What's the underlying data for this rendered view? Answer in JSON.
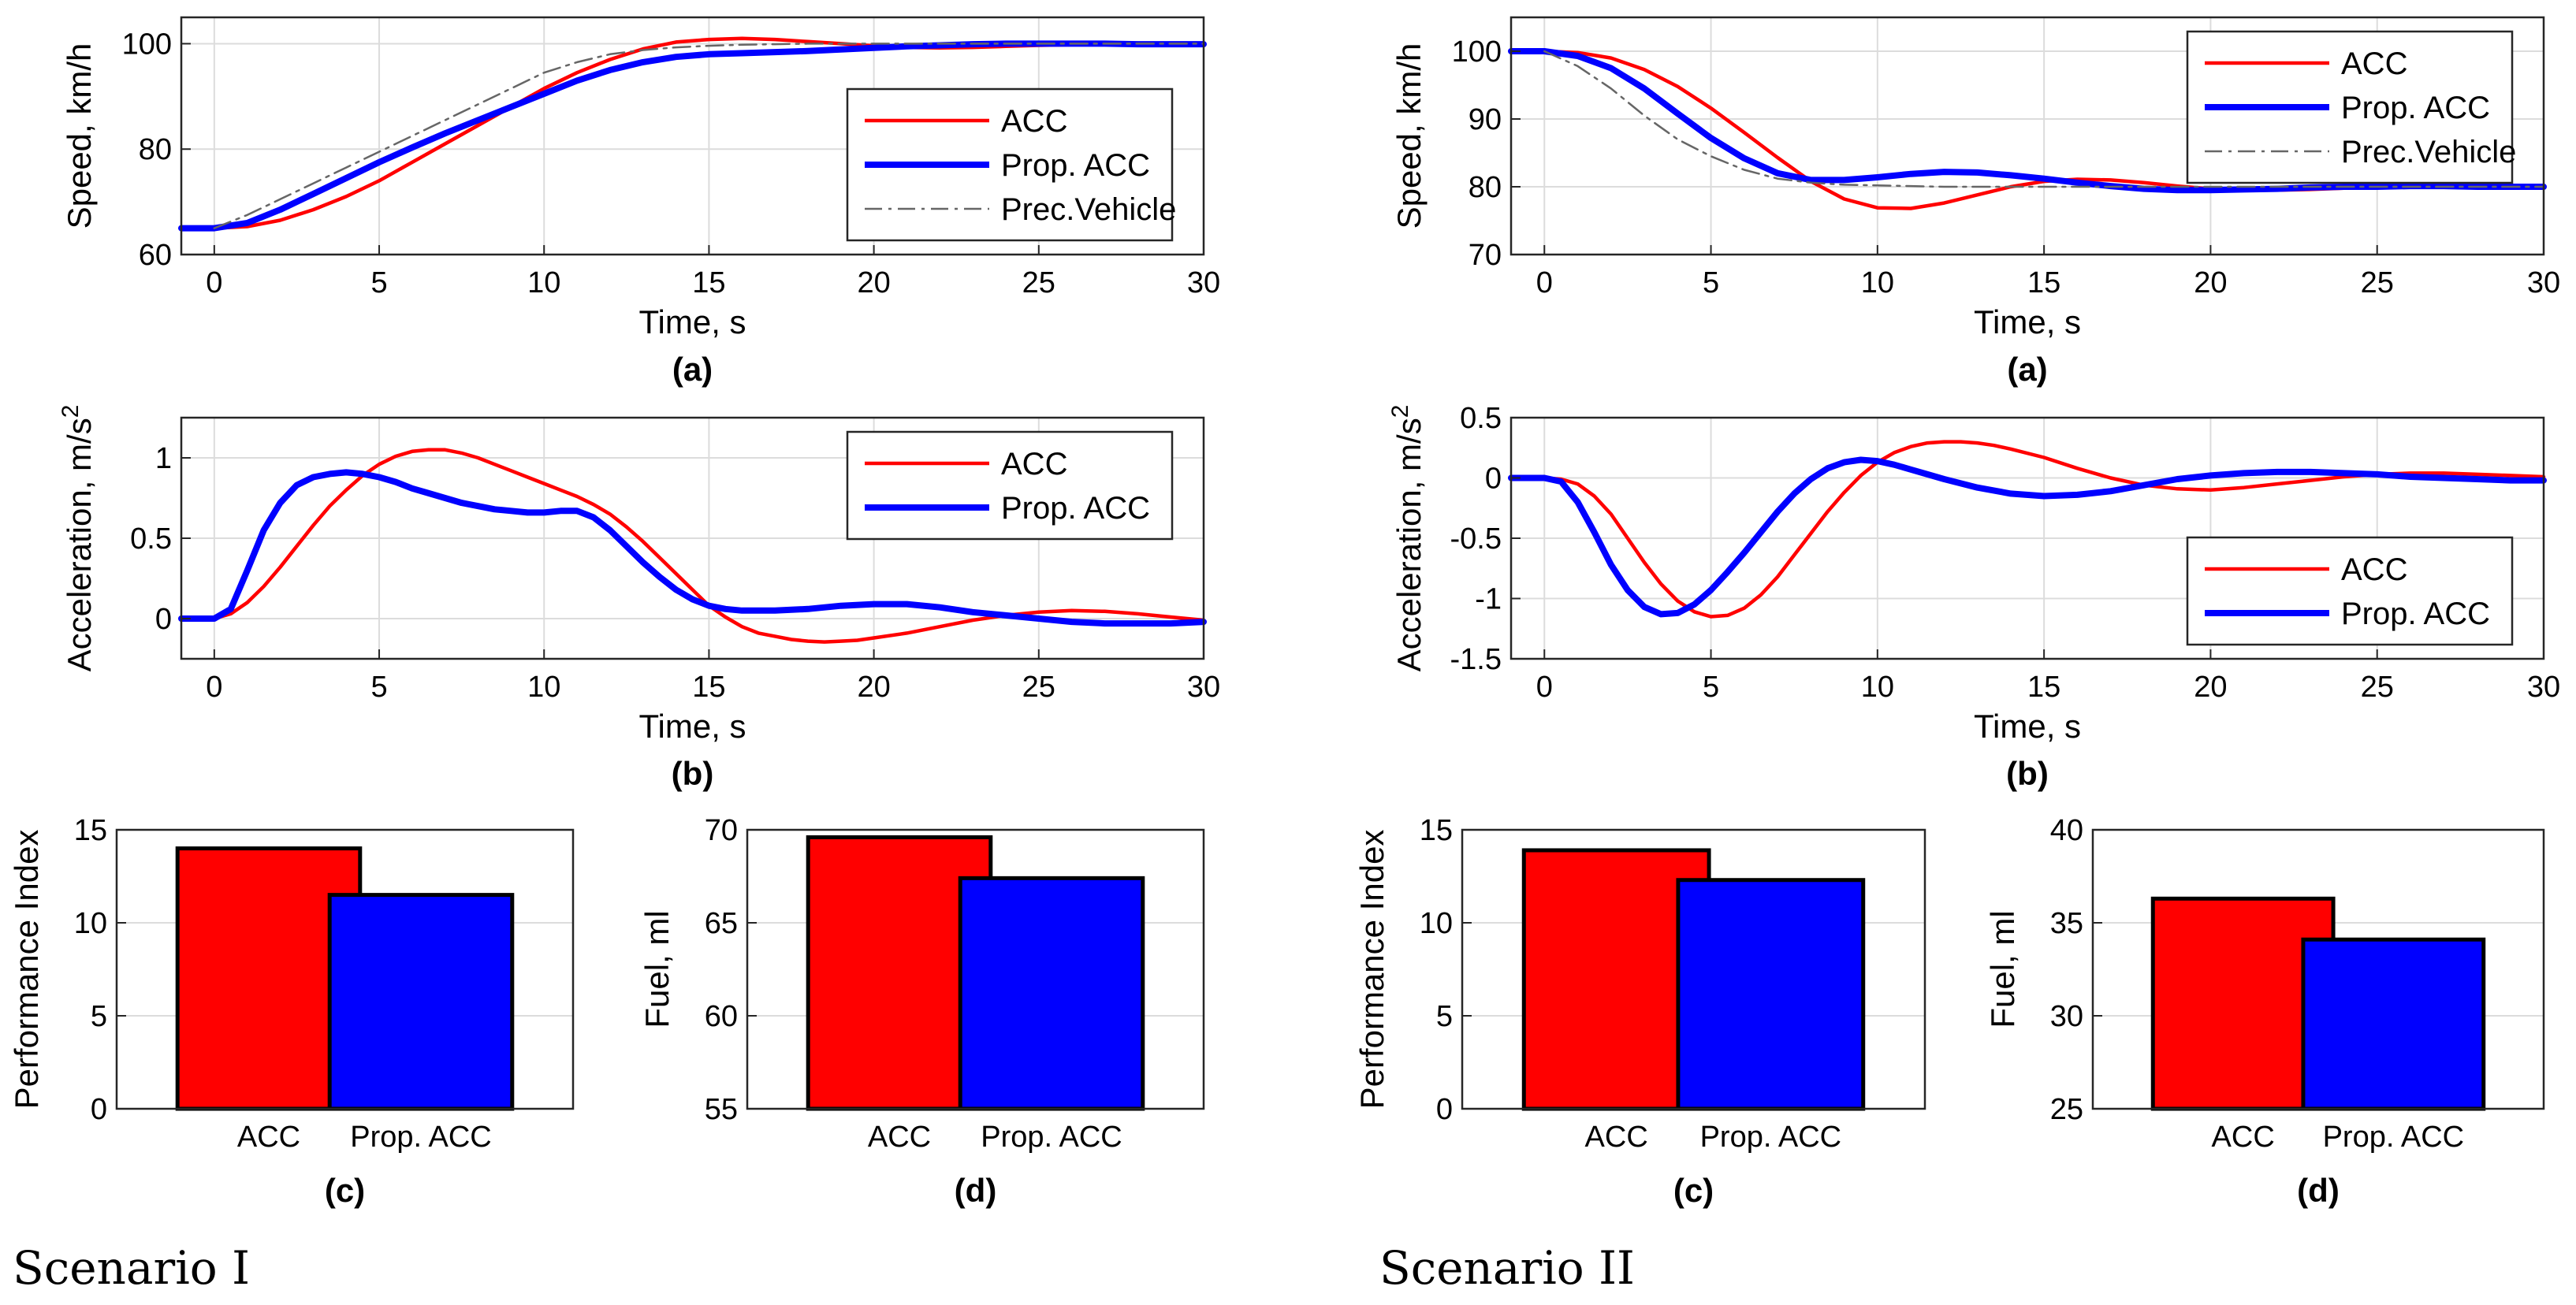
{
  "colors": {
    "acc": "#ff0000",
    "prop": "#0000ff",
    "prec": "#666666",
    "grid": "#dcdcdc",
    "axis": "#262626"
  },
  "scenarios": [
    {
      "title": "Scenario I"
    },
    {
      "title": "Scenario II"
    }
  ],
  "chart_data": [
    {
      "type": "line",
      "scenario": "Scenario I",
      "caption": "(a)",
      "xlabel": "Time, s",
      "ylabel": "Speed, km/h",
      "ylabel_sup": "",
      "xlim": [
        -1,
        30
      ],
      "ylim": [
        60,
        105
      ],
      "xticks": [
        0,
        5,
        10,
        15,
        20,
        25,
        30
      ],
      "xtick_labels": [
        "0",
        "5",
        "10",
        "15",
        "20",
        "25",
        "30"
      ],
      "yticks": [
        60,
        80,
        100
      ],
      "ytick_labels": [
        "60",
        "80",
        "100"
      ],
      "legend": [
        "ACC",
        "Prop. ACC",
        "Prec.Vehicle"
      ],
      "legend_position": "lower-right",
      "series": [
        {
          "name": "ACC",
          "style": "acc",
          "x": [
            -1,
            0,
            1,
            2,
            3,
            4,
            5,
            6,
            7,
            8,
            9,
            10,
            11,
            12,
            13,
            14,
            15,
            16,
            17,
            18,
            19,
            20,
            21,
            22,
            23,
            24,
            25,
            26,
            27,
            28,
            29,
            30
          ],
          "y": [
            65,
            65,
            65.3,
            66.5,
            68.5,
            71,
            74,
            77.5,
            81,
            84.5,
            88,
            91.5,
            94.5,
            97,
            99,
            100.3,
            100.8,
            101,
            100.8,
            100.4,
            100,
            99.6,
            99.3,
            99.2,
            99.3,
            99.5,
            99.7,
            99.8,
            99.9,
            99.9,
            100,
            100
          ]
        },
        {
          "name": "Prop. ACC",
          "style": "prop",
          "x": [
            -1,
            0,
            1,
            2,
            3,
            4,
            5,
            6,
            7,
            8,
            9,
            10,
            11,
            12,
            13,
            14,
            15,
            16,
            17,
            18,
            19,
            20,
            21,
            22,
            23,
            24,
            25,
            26,
            27,
            28,
            29,
            30
          ],
          "y": [
            65,
            65,
            66,
            68.5,
            71.5,
            74.5,
            77.5,
            80.3,
            83,
            85.5,
            88,
            90.5,
            93,
            95,
            96.5,
            97.5,
            98,
            98.2,
            98.4,
            98.6,
            98.9,
            99.2,
            99.5,
            99.7,
            99.9,
            100,
            100,
            100,
            100,
            99.9,
            99.9,
            99.9
          ]
        },
        {
          "name": "Prec.Vehicle",
          "style": "prec",
          "x": [
            0,
            1,
            2,
            3,
            4,
            5,
            6,
            7,
            8,
            9,
            10,
            11,
            12,
            13,
            14,
            15,
            16,
            17,
            18,
            19,
            20,
            21,
            22,
            23,
            24,
            25,
            26,
            27,
            28,
            29,
            30
          ],
          "y": [
            65,
            67.5,
            70.5,
            73.5,
            76.5,
            79.5,
            82.5,
            85.5,
            88.5,
            91.5,
            94.5,
            96.5,
            98,
            98.8,
            99.3,
            99.6,
            99.8,
            99.9,
            100,
            100,
            100,
            100,
            100,
            100,
            100,
            100,
            100,
            100,
            100,
            100,
            100
          ]
        }
      ]
    },
    {
      "type": "line",
      "scenario": "Scenario I",
      "caption": "(b)",
      "xlabel": "Time, s",
      "ylabel": "Acceleration, m/s",
      "ylabel_sup": "2",
      "xlim": [
        -1,
        30
      ],
      "ylim": [
        -0.25,
        1.25
      ],
      "xticks": [
        0,
        5,
        10,
        15,
        20,
        25,
        30
      ],
      "xtick_labels": [
        "0",
        "5",
        "10",
        "15",
        "20",
        "25",
        "30"
      ],
      "yticks": [
        0,
        0.5,
        1
      ],
      "ytick_labels": [
        "0",
        "0.5",
        "1"
      ],
      "legend": [
        "ACC",
        "Prop. ACC"
      ],
      "legend_position": "top-right",
      "series": [
        {
          "name": "ACC",
          "style": "acc",
          "x": [
            -1,
            0,
            0.5,
            1,
            1.5,
            2,
            2.5,
            3,
            3.5,
            4,
            4.5,
            5,
            5.5,
            6,
            6.5,
            7,
            7.5,
            8,
            8.5,
            9,
            9.5,
            10,
            10.5,
            11,
            11.5,
            12,
            12.5,
            13,
            13.5,
            14,
            14.5,
            15,
            15.5,
            16,
            16.5,
            17,
            17.5,
            18,
            18.5,
            19,
            19.5,
            20,
            21,
            22,
            23,
            24,
            25,
            26,
            27,
            28,
            29,
            30
          ],
          "y": [
            0,
            0,
            0.03,
            0.1,
            0.2,
            0.32,
            0.45,
            0.58,
            0.7,
            0.8,
            0.89,
            0.96,
            1.01,
            1.04,
            1.05,
            1.05,
            1.03,
            1.0,
            0.96,
            0.92,
            0.88,
            0.84,
            0.8,
            0.76,
            0.71,
            0.65,
            0.57,
            0.48,
            0.38,
            0.28,
            0.18,
            0.08,
            0.01,
            -0.05,
            -0.09,
            -0.11,
            -0.13,
            -0.14,
            -0.145,
            -0.14,
            -0.135,
            -0.12,
            -0.09,
            -0.05,
            -0.01,
            0.02,
            0.04,
            0.05,
            0.045,
            0.03,
            0.01,
            -0.01
          ]
        },
        {
          "name": "Prop. ACC",
          "style": "prop",
          "x": [
            -1,
            0,
            0.5,
            1,
            1.5,
            2,
            2.5,
            3,
            3.5,
            4,
            4.5,
            5,
            5.5,
            6,
            6.5,
            7,
            7.5,
            8,
            8.5,
            9,
            9.5,
            10,
            10.5,
            11,
            11.5,
            12,
            12.5,
            13,
            13.5,
            14,
            14.5,
            15,
            15.5,
            16,
            16.5,
            17,
            17.5,
            18,
            19,
            20,
            21,
            22,
            23,
            24,
            25,
            26,
            27,
            28,
            29,
            30
          ],
          "y": [
            0,
            0,
            0.06,
            0.3,
            0.55,
            0.72,
            0.83,
            0.88,
            0.9,
            0.91,
            0.9,
            0.88,
            0.85,
            0.81,
            0.78,
            0.75,
            0.72,
            0.7,
            0.68,
            0.67,
            0.66,
            0.66,
            0.67,
            0.67,
            0.63,
            0.55,
            0.45,
            0.35,
            0.26,
            0.18,
            0.12,
            0.08,
            0.06,
            0.05,
            0.05,
            0.05,
            0.055,
            0.06,
            0.08,
            0.09,
            0.09,
            0.07,
            0.04,
            0.02,
            0,
            -0.02,
            -0.03,
            -0.03,
            -0.03,
            -0.02
          ]
        }
      ]
    },
    {
      "type": "bar",
      "scenario": "Scenario I",
      "caption": "(c)",
      "categories": [
        "ACC",
        "Prop. ACC"
      ],
      "values": [
        14,
        11.5
      ],
      "xlabel": "",
      "ylabel": "Performance Index",
      "ylabel_sup": "",
      "ylim": [
        0,
        15
      ],
      "yticks": [
        0,
        5,
        10,
        15
      ],
      "ytick_labels": [
        "0",
        "5",
        "10",
        "15"
      ]
    },
    {
      "type": "bar",
      "scenario": "Scenario I",
      "caption": "(d)",
      "categories": [
        "ACC",
        "Prop. ACC"
      ],
      "values": [
        69.6,
        67.4
      ],
      "xlabel": "",
      "ylabel": "Fuel, ml",
      "ylabel_sup": "",
      "ylim": [
        55,
        70
      ],
      "yticks": [
        55,
        60,
        65,
        70
      ],
      "ytick_labels": [
        "55",
        "60",
        "65",
        "70"
      ]
    },
    {
      "type": "line",
      "scenario": "Scenario II",
      "caption": "(a)",
      "xlabel": "Time, s",
      "ylabel": "Speed, km/h",
      "ylabel_sup": "",
      "xlim": [
        -1,
        30
      ],
      "ylim": [
        70,
        105
      ],
      "xticks": [
        0,
        5,
        10,
        15,
        20,
        25,
        30
      ],
      "xtick_labels": [
        "0",
        "5",
        "10",
        "15",
        "20",
        "25",
        "30"
      ],
      "yticks": [
        70,
        80,
        90,
        100
      ],
      "ytick_labels": [
        "70",
        "80",
        "90",
        "100"
      ],
      "legend": [
        "ACC",
        "Prop. ACC",
        "Prec.Vehicle"
      ],
      "legend_position": "top-right",
      "series": [
        {
          "name": "ACC",
          "style": "acc",
          "x": [
            -1,
            0,
            1,
            2,
            3,
            4,
            5,
            6,
            7,
            8,
            9,
            10,
            11,
            12,
            13,
            14,
            15,
            16,
            17,
            18,
            19,
            20,
            21,
            22,
            23,
            24,
            25,
            26,
            27,
            28,
            29,
            30
          ],
          "y": [
            100,
            100,
            99.8,
            99,
            97.3,
            94.8,
            91.6,
            88,
            84.3,
            80.8,
            78.2,
            76.9,
            76.8,
            77.6,
            78.8,
            80,
            80.8,
            81.1,
            81,
            80.6,
            80.1,
            79.7,
            79.5,
            79.5,
            79.6,
            79.8,
            79.9,
            80,
            80.1,
            80.1,
            80.1,
            80
          ]
        },
        {
          "name": "Prop. ACC",
          "style": "prop",
          "x": [
            -1,
            0,
            1,
            2,
            3,
            4,
            5,
            6,
            7,
            8,
            9,
            10,
            11,
            12,
            13,
            14,
            15,
            16,
            17,
            18,
            19,
            20,
            21,
            22,
            23,
            24,
            25,
            26,
            27,
            28,
            29,
            30
          ],
          "y": [
            100,
            100,
            99.3,
            97.5,
            94.5,
            90.8,
            87.2,
            84.2,
            82,
            81,
            81,
            81.4,
            81.9,
            82.2,
            82.1,
            81.7,
            81.2,
            80.6,
            80.1,
            79.7,
            79.5,
            79.5,
            79.6,
            79.7,
            79.9,
            80,
            80,
            80.1,
            80.1,
            80,
            80,
            80
          ]
        },
        {
          "name": "Prec.Vehicle",
          "style": "prec",
          "x": [
            0,
            1,
            2,
            3,
            4,
            5,
            6,
            7,
            8,
            9,
            10,
            11,
            12,
            13,
            14,
            15,
            16,
            17,
            18,
            19,
            20,
            21,
            22,
            23,
            24,
            25,
            26,
            27,
            28,
            29,
            30
          ],
          "y": [
            100,
            97.8,
            94.5,
            90.5,
            87,
            84.5,
            82.5,
            81.2,
            80.6,
            80.3,
            80.2,
            80.1,
            80,
            80,
            80,
            80,
            80,
            80,
            80,
            80,
            80,
            80,
            80,
            80,
            80,
            80,
            80,
            80,
            80,
            80,
            80
          ]
        }
      ]
    },
    {
      "type": "line",
      "scenario": "Scenario II",
      "caption": "(b)",
      "xlabel": "Time, s",
      "ylabel": "Acceleration, m/s",
      "ylabel_sup": "2",
      "xlim": [
        -1,
        30
      ],
      "ylim": [
        -1.5,
        0.5
      ],
      "xticks": [
        0,
        5,
        10,
        15,
        20,
        25,
        30
      ],
      "xtick_labels": [
        "0",
        "5",
        "10",
        "15",
        "20",
        "25",
        "30"
      ],
      "yticks": [
        -1.5,
        -1,
        -0.5,
        0,
        0.5
      ],
      "ytick_labels": [
        "-1.5",
        "-1",
        "-0.5",
        "0",
        "0.5"
      ],
      "legend": [
        "ACC",
        "Prop. ACC"
      ],
      "legend_position": "lower-right",
      "series": [
        {
          "name": "ACC",
          "style": "acc",
          "x": [
            -1,
            0,
            0.5,
            1,
            1.5,
            2,
            2.5,
            3,
            3.5,
            4,
            4.5,
            5,
            5.5,
            6,
            6.5,
            7,
            7.5,
            8,
            8.5,
            9,
            9.5,
            10,
            10.5,
            11,
            11.5,
            12,
            12.5,
            13,
            13.5,
            14,
            15,
            16,
            17,
            18,
            19,
            20,
            21,
            22,
            23,
            24,
            25,
            26,
            27,
            28,
            29,
            30
          ],
          "y": [
            0,
            0,
            -0.01,
            -0.05,
            -0.15,
            -0.3,
            -0.5,
            -0.7,
            -0.88,
            -1.02,
            -1.11,
            -1.15,
            -1.14,
            -1.08,
            -0.97,
            -0.82,
            -0.64,
            -0.46,
            -0.28,
            -0.12,
            0.02,
            0.13,
            0.21,
            0.26,
            0.29,
            0.3,
            0.3,
            0.29,
            0.27,
            0.24,
            0.17,
            0.08,
            0,
            -0.06,
            -0.09,
            -0.1,
            -0.08,
            -0.05,
            -0.02,
            0.01,
            0.03,
            0.04,
            0.04,
            0.03,
            0.02,
            0.01
          ]
        },
        {
          "name": "Prop. ACC",
          "style": "prop",
          "x": [
            -1,
            0,
            0.5,
            1,
            1.5,
            2,
            2.5,
            3,
            3.5,
            4,
            4.5,
            5,
            5.5,
            6,
            6.5,
            7,
            7.5,
            8,
            8.5,
            9,
            9.5,
            10,
            10.5,
            11,
            11.5,
            12,
            13,
            14,
            15,
            16,
            17,
            18,
            19,
            20,
            21,
            22,
            23,
            24,
            25,
            26,
            27,
            28,
            29,
            30
          ],
          "y": [
            0,
            0,
            -0.03,
            -0.2,
            -0.45,
            -0.72,
            -0.93,
            -1.07,
            -1.13,
            -1.12,
            -1.05,
            -0.93,
            -0.78,
            -0.62,
            -0.45,
            -0.28,
            -0.13,
            -0.01,
            0.08,
            0.13,
            0.15,
            0.14,
            0.11,
            0.07,
            0.03,
            -0.01,
            -0.08,
            -0.13,
            -0.15,
            -0.14,
            -0.11,
            -0.06,
            -0.01,
            0.02,
            0.04,
            0.05,
            0.05,
            0.04,
            0.03,
            0.01,
            0,
            -0.01,
            -0.02,
            -0.02
          ]
        }
      ]
    },
    {
      "type": "bar",
      "scenario": "Scenario II",
      "caption": "(c)",
      "categories": [
        "ACC",
        "Prop. ACC"
      ],
      "values": [
        13.9,
        12.3
      ],
      "xlabel": "",
      "ylabel": "Performance Index",
      "ylabel_sup": "",
      "ylim": [
        0,
        15
      ],
      "yticks": [
        0,
        5,
        10,
        15
      ],
      "ytick_labels": [
        "0",
        "5",
        "10",
        "15"
      ]
    },
    {
      "type": "bar",
      "scenario": "Scenario II",
      "caption": "(d)",
      "categories": [
        "ACC",
        "Prop. ACC"
      ],
      "values": [
        36.3,
        34.1
      ],
      "xlabel": "",
      "ylabel": "Fuel, ml",
      "ylabel_sup": "",
      "ylim": [
        25,
        40
      ],
      "yticks": [
        25,
        30,
        35,
        40
      ],
      "ytick_labels": [
        "25",
        "30",
        "35",
        "40"
      ]
    }
  ]
}
